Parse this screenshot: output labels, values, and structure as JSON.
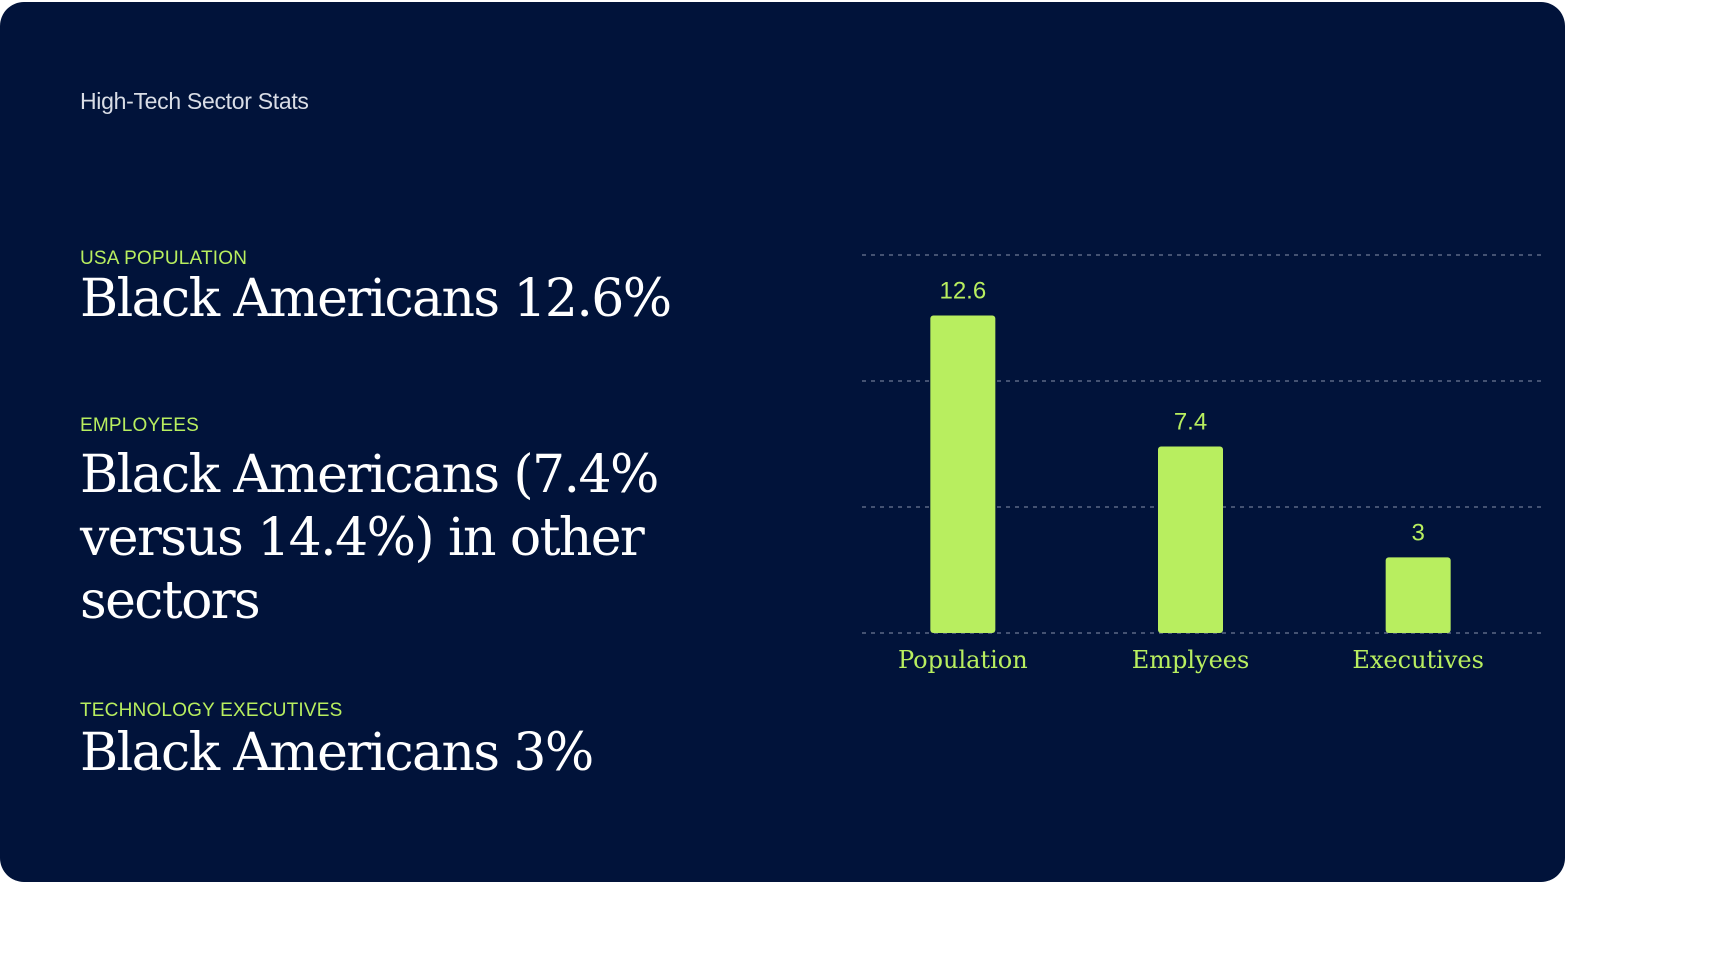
{
  "header": {
    "title": "High-Tech Sector Stats"
  },
  "stats": [
    {
      "label": "USA POPULATION",
      "value": "Black Americans 12.6%"
    },
    {
      "label": "EMPLOYEES",
      "value": "Black Americans (7.4% versus 14.4%) in other sectors"
    },
    {
      "label": "TECHNOLOGY EXECUTIVES",
      "value": "Black Americans 3%"
    }
  ],
  "colors": {
    "background": "#01133a",
    "accent": "#b8ee5f",
    "text": "#ffffff",
    "gridline": "#5a6784"
  },
  "chart_data": {
    "type": "bar",
    "categories": [
      "Population",
      "Emplyees",
      "Executives"
    ],
    "values": [
      12.6,
      7.4,
      3
    ],
    "data_labels": [
      "12.6",
      "7.4",
      "3"
    ],
    "title": "",
    "xlabel": "",
    "ylabel": "",
    "ylim": [
      0,
      15
    ],
    "grid": "horizontal dashed",
    "legend": "none"
  }
}
